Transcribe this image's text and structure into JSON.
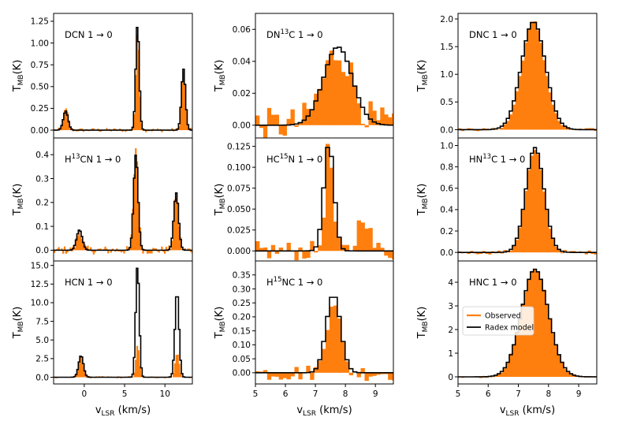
{
  "figure": {
    "legend": {
      "observed": "Observed",
      "model": "Radex model",
      "placement": "center-left"
    },
    "colors": {
      "observed": "#ff7f0e",
      "model": "#000000"
    }
  },
  "chart_data": [
    {
      "type": "bar",
      "panel": "DCN 1→0",
      "title_main": "DCN 1",
      "title_sup": "",
      "title_tail": "",
      "transition": "1 → 0",
      "ylabel": "TMB(K)",
      "xlabel": "",
      "xlim": [
        -3.8,
        13.4
      ],
      "ylim": [
        -0.09,
        1.34
      ],
      "xticks": [],
      "yticks": [
        0.0,
        0.25,
        0.5,
        0.75,
        1.0,
        1.25
      ],
      "yticklabels": [
        "0.00",
        "0.25",
        "0.50",
        "0.75",
        "1.00",
        "1.25"
      ],
      "peaks_obs": [
        [
          -2.3,
          0.24,
          0.3
        ],
        [
          6.6,
          1.1,
          0.22
        ],
        [
          12.3,
          0.68,
          0.25
        ]
      ],
      "peaks_mod": [
        [
          -2.3,
          0.22,
          0.3
        ],
        [
          6.6,
          1.21,
          0.22
        ],
        [
          12.3,
          0.7,
          0.25
        ]
      ],
      "noise": 0.025,
      "bin": 0.18
    },
    {
      "type": "bar",
      "panel": "H13CN 1→0",
      "title_main": "H",
      "title_sup": "13",
      "title_tail": "CN",
      "transition": "1 → 0",
      "ylabel": "TMB(K)",
      "xlabel": "",
      "xlim": [
        -3.8,
        13.4
      ],
      "ylim": [
        -0.045,
        0.47
      ],
      "xticks": [],
      "yticks": [
        0.0,
        0.1,
        0.2,
        0.3,
        0.4
      ],
      "yticklabels": [
        "0.0",
        "0.1",
        "0.2",
        "0.3",
        "0.4"
      ],
      "peaks_obs": [
        [
          -0.6,
          0.08,
          0.35
        ],
        [
          6.4,
          0.43,
          0.28
        ],
        [
          11.4,
          0.23,
          0.3
        ]
      ],
      "peaks_mod": [
        [
          -0.6,
          0.085,
          0.35
        ],
        [
          6.4,
          0.4,
          0.28
        ],
        [
          11.4,
          0.24,
          0.3
        ]
      ],
      "noise": 0.018,
      "bin": 0.18
    },
    {
      "type": "bar",
      "panel": "HCN 1→0",
      "title_main": "HCN 1",
      "title_sup": "",
      "title_tail": "",
      "transition": "1 → 0",
      "ylabel": "TMB(K)",
      "xlabel": "vLSR (km/s)",
      "xlim": [
        -3.8,
        13.4
      ],
      "ylim": [
        -0.9,
        15.6
      ],
      "xticks": [
        0,
        5,
        10
      ],
      "yticks": [
        0.0,
        2.5,
        5.0,
        7.5,
        10.0,
        12.5,
        15.0
      ],
      "yticklabels": [
        "0.0",
        "2.5",
        "5.0",
        "7.5",
        "10.0",
        "12.5",
        "15.0"
      ],
      "peaks_obs": [
        [
          -0.4,
          2.8,
          0.3
        ],
        [
          6.6,
          4.2,
          0.22
        ],
        [
          11.5,
          3.2,
          0.25
        ]
      ],
      "peaks_mod": [
        [
          -0.4,
          2.9,
          0.3
        ],
        [
          6.6,
          15.0,
          0.22
        ],
        [
          11.5,
          11.5,
          0.25
        ]
      ],
      "noise": 0.15,
      "bin": 0.18
    },
    {
      "type": "bar",
      "panel": "DN13C 1→0",
      "title_main": "DN",
      "title_sup": "13",
      "title_tail": "C",
      "transition": "1 → 0",
      "ylabel": "TMB(K)",
      "xlabel": "",
      "xlim": [
        5.0,
        9.6
      ],
      "ylim": [
        -0.008,
        0.07
      ],
      "xticks": [],
      "yticks": [
        0.0,
        0.02,
        0.04,
        0.06
      ],
      "yticklabels": [
        "0.00",
        "0.02",
        "0.04",
        "0.06"
      ],
      "peaks_obs": [
        [
          7.75,
          0.046,
          0.5
        ]
      ],
      "peaks_mod": [
        [
          7.75,
          0.049,
          0.48
        ]
      ],
      "noise": 0.011,
      "bin": 0.13
    },
    {
      "type": "bar",
      "panel": "HC15N 1→0",
      "title_main": "HC",
      "title_sup": "15",
      "title_tail": "N",
      "transition": "1 → 0",
      "ylabel": "TMB(K)",
      "xlabel": "",
      "xlim": [
        5.0,
        9.6
      ],
      "ylim": [
        -0.012,
        0.135
      ],
      "xticks": [],
      "yticks": [
        0.0,
        0.025,
        0.05,
        0.075,
        0.1,
        0.125
      ],
      "yticklabels": [
        "0.000",
        "0.025",
        "0.050",
        "0.075",
        "0.100",
        "0.125"
      ],
      "peaks_obs": [
        [
          7.45,
          0.125,
          0.13
        ],
        [
          8.6,
          0.045,
          0.18
        ]
      ],
      "peaks_mod": [
        [
          7.45,
          0.128,
          0.17
        ]
      ],
      "noise": 0.012,
      "bin": 0.13
    },
    {
      "type": "bar",
      "panel": "H15NC 1→0",
      "title_main": "H",
      "title_sup": "15",
      "title_tail": "NC",
      "transition": "1 → 0",
      "ylabel": "TMB(K)",
      "xlabel": "vLSR (km/s)",
      "xlim": [
        5.0,
        9.6
      ],
      "ylim": [
        -0.04,
        0.4
      ],
      "xticks": [
        5,
        6,
        7,
        8,
        9
      ],
      "yticks": [
        0.0,
        0.05,
        0.1,
        0.15,
        0.2,
        0.25,
        0.3,
        0.35
      ],
      "yticklabels": [
        "0.00",
        "0.05",
        "0.10",
        "0.15",
        "0.20",
        "0.25",
        "0.30",
        "0.35"
      ],
      "peaks_obs": [
        [
          7.6,
          0.27,
          0.22
        ]
      ],
      "peaks_mod": [
        [
          7.6,
          0.28,
          0.24
        ]
      ],
      "noise": 0.03,
      "bin": 0.13
    },
    {
      "type": "bar",
      "panel": "DNC 1→0",
      "title_main": "DNC 1",
      "title_sup": "",
      "title_tail": "",
      "transition": "1 → 0",
      "ylabel": "TMB(K)",
      "xlabel": "",
      "xlim": [
        5.0,
        9.6
      ],
      "ylim": [
        -0.15,
        2.1
      ],
      "xticks": [],
      "yticks": [
        0.0,
        0.5,
        1.0,
        1.5,
        2.0
      ],
      "yticklabels": [
        "0.0",
        "0.5",
        "1.0",
        "1.5",
        "2.0"
      ],
      "peaks_obs": [
        [
          7.5,
          1.95,
          0.38
        ]
      ],
      "peaks_mod": [
        [
          7.5,
          1.95,
          0.4
        ]
      ],
      "noise": 0.03,
      "bin": 0.1
    },
    {
      "type": "bar",
      "panel": "HN13C 1→0",
      "title_main": "HN",
      "title_sup": "13",
      "title_tail": "C",
      "transition": "1 → 0",
      "ylabel": "TMB(K)",
      "xlabel": "",
      "xlim": [
        5.0,
        9.6
      ],
      "ylim": [
        -0.08,
        1.07
      ],
      "xticks": [],
      "yticks": [
        0.0,
        0.2,
        0.4,
        0.6,
        0.8,
        1.0
      ],
      "yticklabels": [
        "0.0",
        "0.2",
        "0.4",
        "0.6",
        "0.8",
        "1.0"
      ],
      "peaks_obs": [
        [
          7.55,
          0.95,
          0.3
        ]
      ],
      "peaks_mod": [
        [
          7.55,
          0.98,
          0.3
        ]
      ],
      "noise": 0.02,
      "bin": 0.1
    },
    {
      "type": "bar",
      "panel": "HNC 1→0",
      "title_main": "HNC 1",
      "title_sup": "",
      "title_tail": "",
      "transition": "1 → 0",
      "ylabel": "TMB(K)",
      "xlabel": "vLSR (km/s)",
      "xlim": [
        5.0,
        9.6
      ],
      "ylim": [
        -0.3,
        4.9
      ],
      "xticks": [
        5,
        6,
        7,
        8,
        9
      ],
      "yticks": [
        0,
        1,
        2,
        3,
        4
      ],
      "yticklabels": [
        "0",
        "1",
        "2",
        "3",
        "4"
      ],
      "peaks_obs": [
        [
          7.55,
          4.55,
          0.45
        ]
      ],
      "peaks_mod": [
        [
          7.55,
          4.55,
          0.45
        ]
      ],
      "noise": 0.05,
      "bin": 0.1
    }
  ]
}
